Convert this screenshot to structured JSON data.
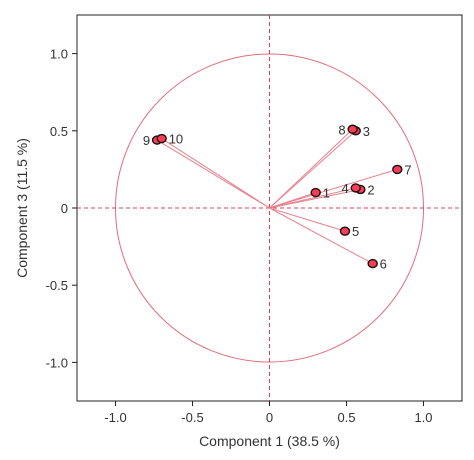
{
  "chart_data": {
    "type": "scatter",
    "title": "",
    "xlabel": "Component 1  (38.5 %)",
    "ylabel": "Component 3  (11.5 %)",
    "xlim": [
      -1.25,
      1.25
    ],
    "ylim": [
      -1.25,
      1.25
    ],
    "xticks": [
      {
        "value": -1.0,
        "label": "-1.0"
      },
      {
        "value": -0.5,
        "label": "-0.5"
      },
      {
        "value": 0,
        "label": "0"
      },
      {
        "value": 0.5,
        "label": "0.5"
      },
      {
        "value": 1.0,
        "label": "1.0"
      }
    ],
    "yticks": [
      {
        "value": 1.0,
        "label": "1.0"
      },
      {
        "value": 0.5,
        "label": "0.5"
      },
      {
        "value": 0,
        "label": "0"
      },
      {
        "value": -0.5,
        "label": "-0.5"
      },
      {
        "value": -1.0,
        "label": "-1.0"
      }
    ],
    "grid": false,
    "reference_lines": {
      "x": 0,
      "y": 0,
      "style": "dashed"
    },
    "unit_circle": {
      "radius": 1.0
    },
    "points": [
      {
        "label": "1",
        "x": 0.3,
        "y": 0.1,
        "label_side": "right"
      },
      {
        "label": "2",
        "x": 0.59,
        "y": 0.12,
        "label_side": "right"
      },
      {
        "label": "3",
        "x": 0.56,
        "y": 0.5,
        "label_side": "right"
      },
      {
        "label": "4",
        "x": 0.56,
        "y": 0.13,
        "label_side": "left"
      },
      {
        "label": "5",
        "x": 0.49,
        "y": -0.15,
        "label_side": "right"
      },
      {
        "label": "6",
        "x": 0.67,
        "y": -0.36,
        "label_side": "right"
      },
      {
        "label": "7",
        "x": 0.83,
        "y": 0.25,
        "label_side": "right"
      },
      {
        "label": "8",
        "x": 0.54,
        "y": 0.51,
        "label_side": "left"
      },
      {
        "label": "9",
        "x": -0.73,
        "y": 0.44,
        "label_side": "left"
      },
      {
        "label": "10",
        "x": -0.7,
        "y": 0.45,
        "label_side": "right"
      }
    ],
    "colors": {
      "vector": "#e8828f",
      "circle": "#e36d7c",
      "reference": "#e0404f",
      "marker_fill": "#ff3b55",
      "marker_outline": "#111111",
      "axis": "#222222",
      "text": "#333333"
    }
  }
}
